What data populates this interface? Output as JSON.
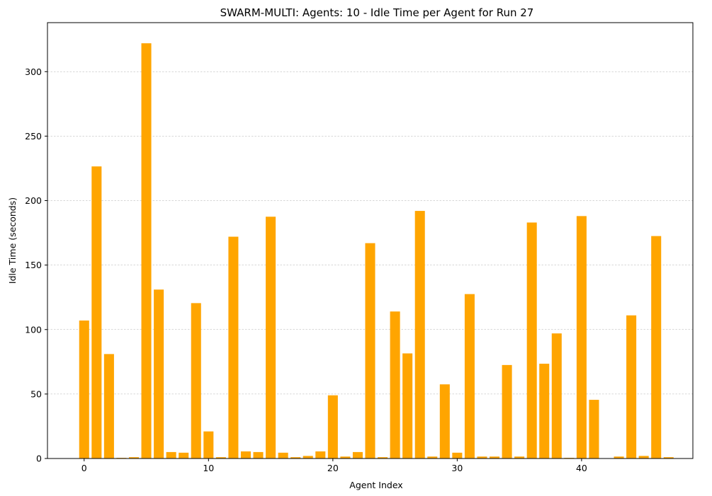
{
  "chart_data": {
    "type": "bar",
    "title": "SWARM-MULTI: Agents: 10 - Idle Time per Agent for Run 27",
    "xlabel": "Agent Index",
    "ylabel": "Idle Time (seconds)",
    "xlim": [
      -2.95,
      48.95
    ],
    "ylim": [
      0,
      338
    ],
    "xticks": [
      0,
      10,
      20,
      30,
      40
    ],
    "yticks": [
      0,
      50,
      100,
      150,
      200,
      250,
      300
    ],
    "grid": "y-dashed",
    "bar_color": "#ffa500",
    "x": [
      0,
      1,
      2,
      3,
      4,
      5,
      6,
      7,
      8,
      9,
      10,
      11,
      12,
      13,
      14,
      15,
      16,
      17,
      18,
      19,
      20,
      21,
      22,
      23,
      24,
      25,
      26,
      27,
      28,
      29,
      30,
      31,
      32,
      33,
      34,
      35,
      36,
      37,
      38,
      39,
      40,
      41,
      42,
      43,
      44,
      45,
      46,
      47
    ],
    "values": [
      107,
      226.5,
      81,
      0.5,
      1,
      322,
      131,
      5,
      4.5,
      120.5,
      21,
      1,
      172,
      5.5,
      5,
      187.5,
      4.5,
      1,
      2,
      5.5,
      49,
      1.5,
      5,
      167,
      1,
      114,
      81.5,
      192,
      1.5,
      57.5,
      4.5,
      127.5,
      1.5,
      1.5,
      72.5,
      1.5,
      183,
      73.5,
      97,
      0.5,
      188,
      45.5,
      0,
      1.5,
      111,
      2,
      172.5,
      1
    ]
  }
}
